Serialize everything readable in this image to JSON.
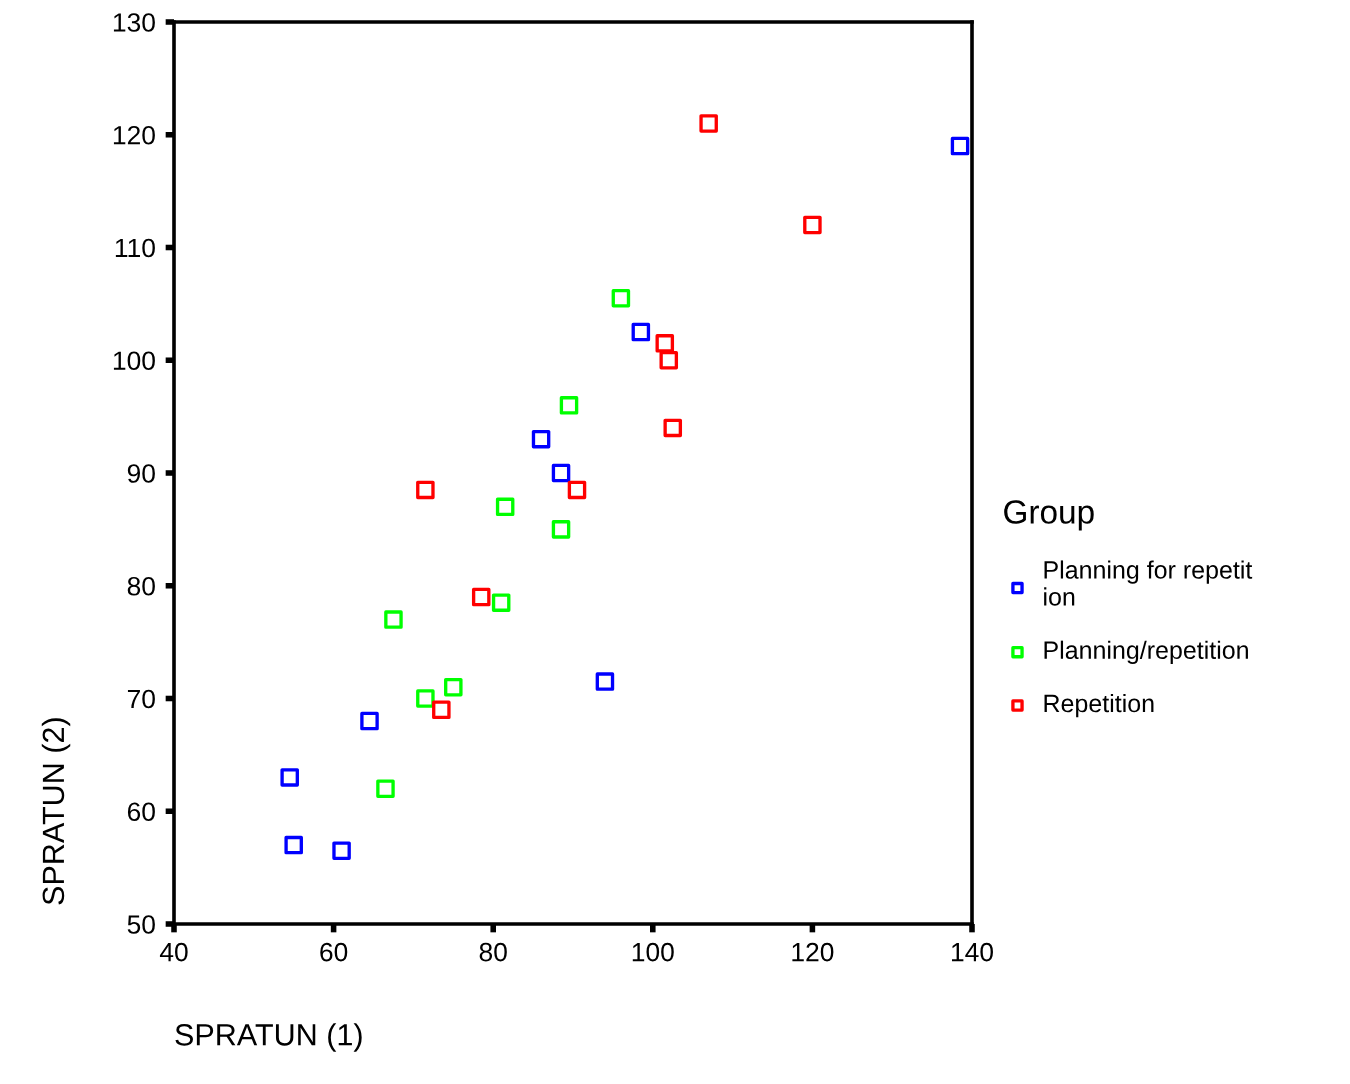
{
  "chart_data": {
    "type": "scatter",
    "xlabel": "SPRATUN (1)",
    "ylabel": "SPRATUN (2)",
    "legend_title": "Group",
    "legend": "right",
    "marker": "square",
    "xlim": [
      40,
      140
    ],
    "xticks": [
      40,
      60,
      80,
      100,
      120,
      140
    ],
    "ylim": [
      50,
      130
    ],
    "yticks": [
      50,
      60,
      70,
      80,
      90,
      100,
      110,
      120,
      130
    ],
    "grid": false,
    "series": [
      {
        "name": "Planning for repetit\nion",
        "color": "#0000ff",
        "x": [
          54.5,
          55,
          61,
          64.5,
          86,
          88.5,
          94,
          98.5,
          138.5
        ],
        "values": [
          63,
          57,
          56.5,
          68,
          93,
          90,
          71.5,
          102.5,
          119
        ]
      },
      {
        "name": "Planning/repetition",
        "color": "#00ff00",
        "x": [
          66.5,
          67.5,
          71.5,
          75,
          81,
          81.5,
          88.5,
          89.5,
          96
        ],
        "values": [
          62,
          77,
          70,
          71,
          78.5,
          87,
          85,
          96,
          105.5
        ]
      },
      {
        "name": "Repetition",
        "color": "#ff0000",
        "x": [
          71.5,
          73.5,
          78.5,
          90.5,
          101.5,
          102,
          102.5,
          107,
          120
        ],
        "values": [
          88.5,
          69,
          79,
          88.5,
          101.5,
          100,
          94,
          121,
          112
        ]
      }
    ]
  }
}
